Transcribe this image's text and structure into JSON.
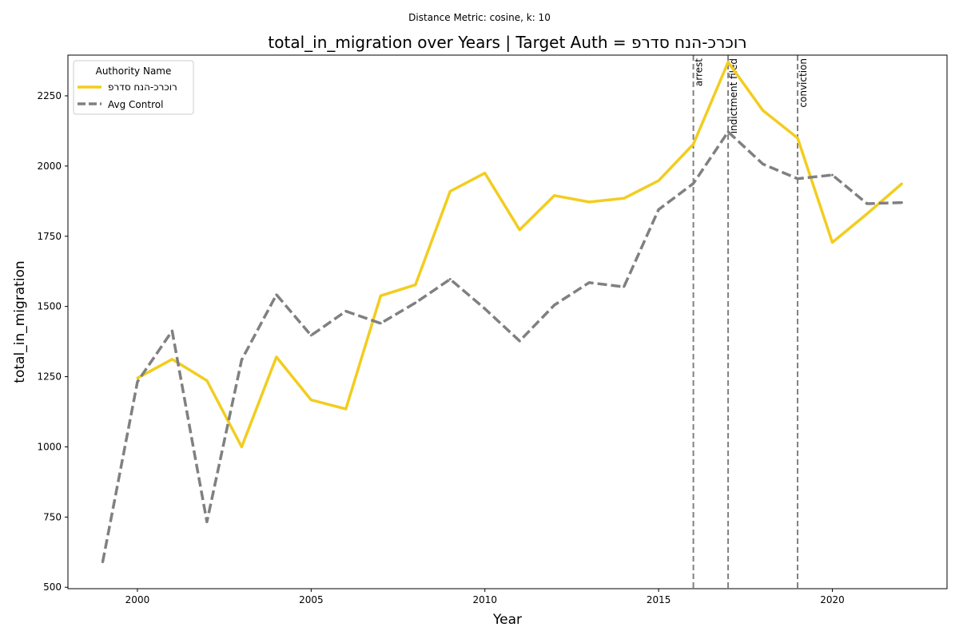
{
  "chart_data": {
    "type": "line",
    "suptitle": "Distance Metric: cosine, k: 10",
    "title": "total_in_migration over Years | Target Auth = רוכרכ-הנח סדרפ",
    "xlabel": "Year",
    "ylabel": "total_in_migration",
    "xlim": [
      1998,
      2023.3
    ],
    "ylim": [
      495,
      2395
    ],
    "xticks": [
      2000,
      2005,
      2010,
      2015,
      2020
    ],
    "yticks": [
      500,
      750,
      1000,
      1250,
      1500,
      1750,
      2000,
      2250
    ],
    "grid": false,
    "legend": {
      "title": "Authority Name",
      "placement": "top-left"
    },
    "series": [
      {
        "name": "רוכרכ-הנח סדרפ",
        "color": "#f2cd1f",
        "style": "solid",
        "x": [
          2000,
          2001,
          2002,
          2003,
          2004,
          2005,
          2006,
          2007,
          2008,
          2009,
          2010,
          2011,
          2012,
          2013,
          2014,
          2015,
          2016,
          2017,
          2018,
          2019,
          2020,
          2021,
          2022
        ],
        "values": [
          1245,
          1312,
          1236,
          1000,
          1320,
          1167,
          1135,
          1538,
          1577,
          1910,
          1975,
          1773,
          1895,
          1872,
          1885,
          1948,
          2078,
          2370,
          2198,
          2100,
          1728,
          1830,
          1937
        ]
      },
      {
        "name": "Avg Control",
        "color": "#808080",
        "style": "dashed",
        "x": [
          1999,
          2000,
          2001,
          2002,
          2003,
          2004,
          2005,
          2006,
          2007,
          2008,
          2009,
          2010,
          2011,
          2012,
          2013,
          2014,
          2015,
          2016,
          2017,
          2018,
          2019,
          2020,
          2021,
          2022
        ],
        "values": [
          590,
          1232,
          1413,
          733,
          1310,
          1542,
          1397,
          1483,
          1440,
          1513,
          1597,
          1492,
          1377,
          1505,
          1585,
          1570,
          1845,
          1938,
          2122,
          2007,
          1955,
          1968,
          1866,
          1870
        ]
      }
    ],
    "events": [
      {
        "x": 2016,
        "label": "arrest"
      },
      {
        "x": 2017,
        "label": "indictment filed"
      },
      {
        "x": 2019,
        "label": "conviction"
      }
    ]
  }
}
